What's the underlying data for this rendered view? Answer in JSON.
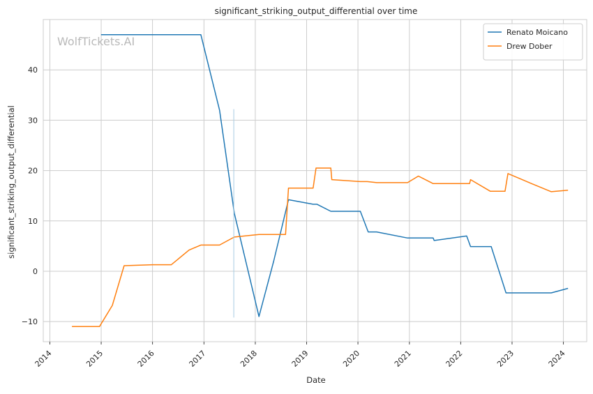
{
  "chart_data": {
    "type": "line",
    "title": "significant_striking_output_differential over time",
    "xlabel": "Date",
    "ylabel": "significant_striking_output_differential",
    "watermark": "WolfTickets.AI",
    "x_ticks": [
      "2014",
      "2015",
      "2016",
      "2017",
      "2018",
      "2019",
      "2020",
      "2021",
      "2022",
      "2023",
      "2024"
    ],
    "y_ticks": [
      -10,
      0,
      10,
      20,
      30,
      40
    ],
    "xlim": [
      "2013-11-15",
      "2024-06-15"
    ],
    "ylim": [
      -14,
      50
    ],
    "grid": true,
    "legend_position": "top-right",
    "series": [
      {
        "name": "Renato Moicano",
        "color": "#1f77b4",
        "points": [
          [
            "2014-12-31",
            47
          ],
          [
            "2016-12-10",
            47
          ],
          [
            "2017-04-22",
            32
          ],
          [
            "2017-08-05",
            11.5
          ],
          [
            "2018-01-27",
            -9
          ],
          [
            "2018-05-12",
            2
          ],
          [
            "2018-08-25",
            14.2
          ],
          [
            "2019-02-16",
            13.3
          ],
          [
            "2019-03-16",
            13.3
          ],
          [
            "2019-06-22",
            11.9
          ],
          [
            "2020-01-18",
            11.9
          ],
          [
            "2020-03-14",
            7.8
          ],
          [
            "2020-05-13",
            7.8
          ],
          [
            "2020-12-19",
            6.6
          ],
          [
            "2021-06-19",
            6.6
          ],
          [
            "2021-06-26",
            6.1
          ],
          [
            "2022-02-12",
            7.0
          ],
          [
            "2022-03-12",
            4.9
          ],
          [
            "2022-08-06",
            4.9
          ],
          [
            "2022-11-19",
            -4.3
          ],
          [
            "2023-10-07",
            -4.3
          ],
          [
            "2024-02-03",
            -3.4
          ]
        ]
      },
      {
        "name": "Drew Dober",
        "color": "#ff7f0e",
        "points": [
          [
            "2014-06-07",
            -11
          ],
          [
            "2014-12-20",
            -11
          ],
          [
            "2015-03-21",
            -6.8
          ],
          [
            "2015-06-13",
            1.1
          ],
          [
            "2016-01-02",
            1.3
          ],
          [
            "2016-05-14",
            1.3
          ],
          [
            "2016-09-17",
            4.2
          ],
          [
            "2016-12-10",
            5.2
          ],
          [
            "2017-04-22",
            5.2
          ],
          [
            "2017-08-05",
            6.8
          ],
          [
            "2018-01-27",
            7.3
          ],
          [
            "2018-08-04",
            7.3
          ],
          [
            "2018-08-25",
            16.5
          ],
          [
            "2019-02-16",
            16.5
          ],
          [
            "2019-03-09",
            20.5
          ],
          [
            "2019-06-22",
            20.5
          ],
          [
            "2019-06-29",
            18.2
          ],
          [
            "2020-01-18",
            17.8
          ],
          [
            "2020-03-07",
            17.8
          ],
          [
            "2020-05-13",
            17.6
          ],
          [
            "2020-12-19",
            17.6
          ],
          [
            "2021-03-06",
            18.9
          ],
          [
            "2021-06-19",
            17.4
          ],
          [
            "2022-03-05",
            17.4
          ],
          [
            "2022-03-12",
            18.2
          ],
          [
            "2022-07-30",
            15.9
          ],
          [
            "2022-11-12",
            15.9
          ],
          [
            "2022-12-03",
            19.4
          ],
          [
            "2023-05-20",
            17.4
          ],
          [
            "2023-10-07",
            15.8
          ],
          [
            "2024-02-03",
            16.1
          ]
        ]
      },
      {
        "name": "",
        "color": "#a6cbe3",
        "points": [
          [
            "2017-08-01",
            32.2
          ],
          [
            "2017-08-01",
            -9.2
          ]
        ]
      }
    ]
  }
}
